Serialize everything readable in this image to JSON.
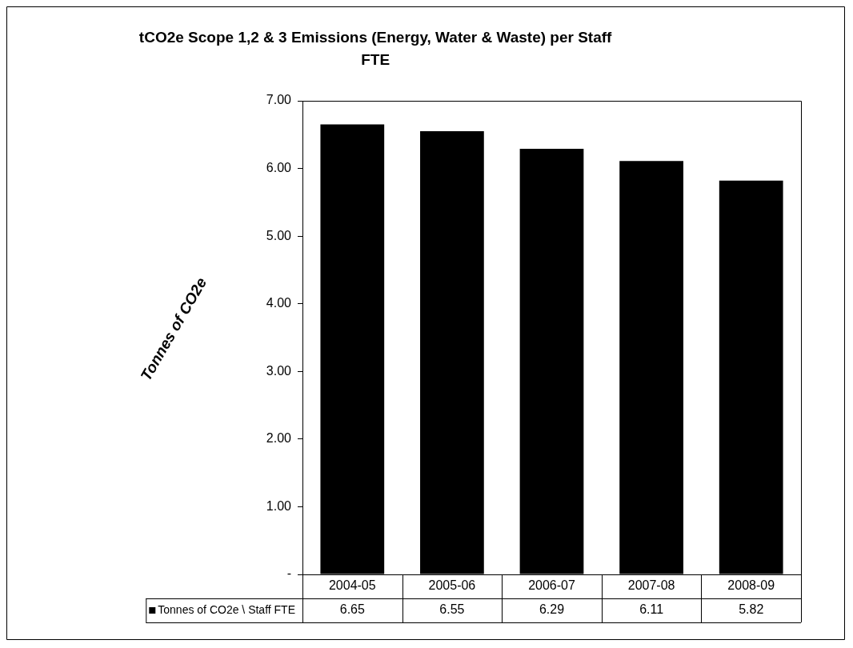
{
  "chart_data": {
    "type": "bar",
    "title": "tCO2e Scope 1,2 & 3 Emissions (Energy, Water & Waste) per Staff FTE",
    "ylabel": "Tonnes of CO2e",
    "categories": [
      "2004-05",
      "2005-06",
      "2006-07",
      "2007-08",
      "2008-09"
    ],
    "series": [
      {
        "name": "Tonnes of CO2e \\ Staff FTE",
        "color": "#000000",
        "values": [
          6.65,
          6.55,
          6.29,
          6.11,
          5.82
        ]
      }
    ],
    "ylim": [
      0,
      7
    ],
    "yticks": [
      {
        "value": 0,
        "label": "-"
      },
      {
        "value": 1,
        "label": "1.00"
      },
      {
        "value": 2,
        "label": "2.00"
      },
      {
        "value": 3,
        "label": "3.00"
      },
      {
        "value": 4,
        "label": "4.00"
      },
      {
        "value": 5,
        "label": "5.00"
      },
      {
        "value": 6,
        "label": "6.00"
      },
      {
        "value": 7,
        "label": "7.00"
      }
    ],
    "grid": false,
    "legend": "bottom",
    "data_labels": true
  }
}
